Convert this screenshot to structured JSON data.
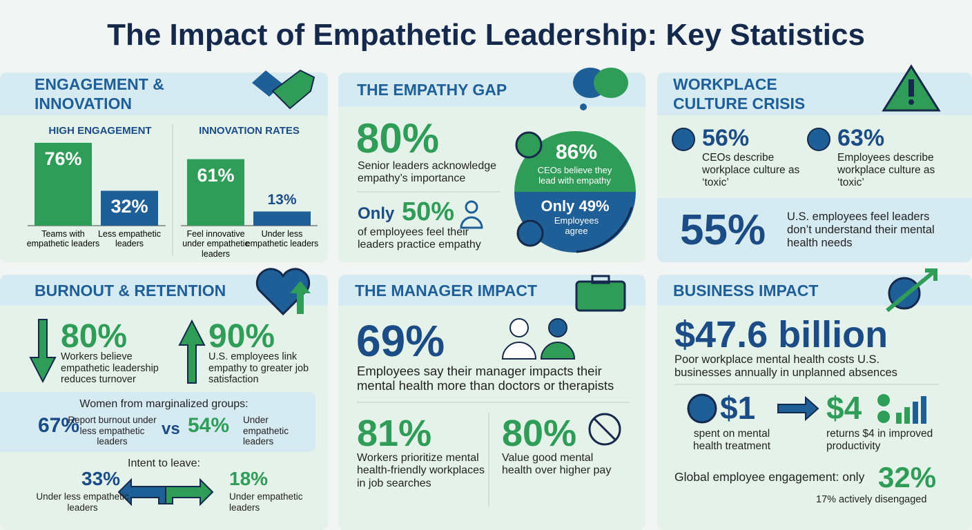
{
  "title": "The Impact of Empathetic Leadership: Key Statistics",
  "engagement": {
    "heading": "ENGAGEMENT & INNOVATION",
    "charts": [
      {
        "title": "HIGH ENGAGEMENT",
        "bars": [
          {
            "value": 76,
            "label": "76%",
            "caption": "Teams with empathetic leaders"
          },
          {
            "value": 32,
            "label": "32%",
            "caption": "Less empathetic leaders"
          }
        ]
      },
      {
        "title": "INNOVATION RATES",
        "bars": [
          {
            "value": 61,
            "label": "61%",
            "caption": "Feel innovative under empathetic leaders"
          },
          {
            "value": 13,
            "label": "13%",
            "caption": "Under less empathetic leaders"
          }
        ]
      }
    ]
  },
  "empathy_gap": {
    "heading": "THE EMPATHY GAP",
    "stat": "80%",
    "text": "Senior leaders acknowledge empathy’s importance",
    "prefix": "Only",
    "stat2": "50%",
    "text2": "of employees feel their leaders practice empathy",
    "ceo_stat": "86%",
    "ceo_text": "CEOs believe they lead with empathy",
    "emp_stat": "Only 49%",
    "emp_text": "Employees agree"
  },
  "culture": {
    "heading": "WORKPLACE CULTURE CRISIS",
    "items": [
      {
        "stat": "56%",
        "text": "CEOs describe workplace culture as ‘toxic’"
      },
      {
        "stat": "63%",
        "text": "Employees describe workplace culture as ‘toxic’"
      }
    ],
    "stat": "55%",
    "text": "U.S. employees feel leaders don’t understand their mental health needs"
  },
  "burnout": {
    "heading": "BURNOUT & RETENTION",
    "items": [
      {
        "stat": "80%",
        "text": "Workers believe empathetic leadership reduces turnover"
      },
      {
        "stat": "90%",
        "text": "U.S. employees link empathy to greater job satisfaction"
      }
    ],
    "women_title": "Women from marginalized groups:",
    "women": [
      {
        "stat": "67%",
        "text": "Report burnout under less empathetic leaders"
      },
      {
        "stat": "54%",
        "text": "Under empathetic leaders"
      }
    ],
    "vs": "vs",
    "leave_title": "Intent to leave:",
    "leave": [
      {
        "stat": "33%",
        "text": "Under less empathetic leaders"
      },
      {
        "stat": "18%",
        "text": "Under empathetic leaders"
      }
    ]
  },
  "manager": {
    "heading": "THE MANAGER IMPACT",
    "stat": "69%",
    "text": "Employees say their manager impacts their mental health more than doctors or therapists",
    "items": [
      {
        "stat": "81%",
        "text": "Workers prioritize mental health-friendly workplaces in job searches"
      },
      {
        "stat": "80%",
        "text": "Value good mental health over higher pay"
      }
    ]
  },
  "business": {
    "heading": "BUSINESS IMPACT",
    "stat": "$47.6 billion",
    "text": "Poor workplace mental health costs U.S. businesses annually in unplanned absences",
    "spent": "$1",
    "spent_text": "spent on mental health treatment",
    "returns": "$4",
    "returns_text": "returns $4 in improved productivity",
    "global_text": "Global employee engagement: only",
    "global_stat": "32%",
    "disengaged": "17% actively disengaged"
  }
}
